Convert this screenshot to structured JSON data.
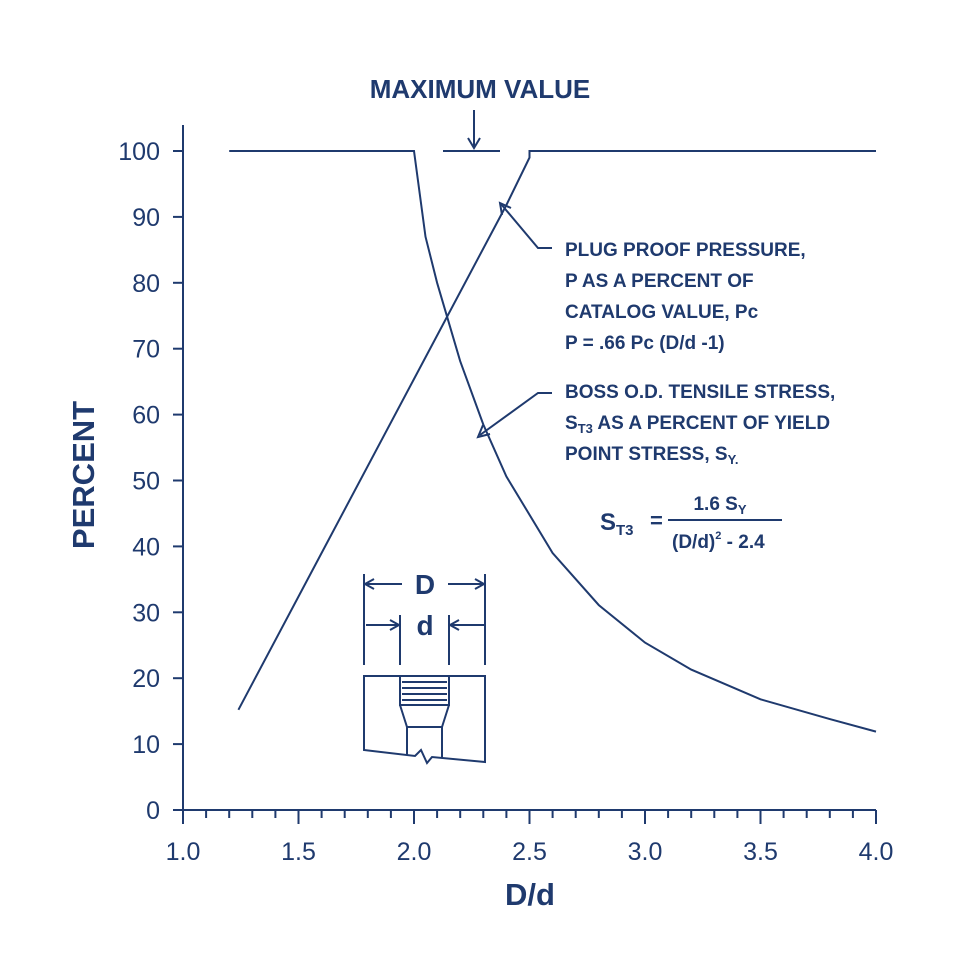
{
  "chart_data": {
    "type": "line",
    "title": "",
    "xlabel": "D/d",
    "ylabel": "PERCENT",
    "xlim": [
      1.0,
      4.0
    ],
    "ylim": [
      0,
      100
    ],
    "x_ticks": [
      "1.0",
      "1.5",
      "2.0",
      "2.5",
      "3.0",
      "3.5",
      "4.0"
    ],
    "y_ticks": [
      "0",
      "10",
      "20",
      "30",
      "40",
      "50",
      "60",
      "70",
      "80",
      "90",
      "100"
    ],
    "grid": false,
    "series": [
      {
        "name": "plug-proof-pressure",
        "points": [
          [
            1.24,
            15.2
          ],
          [
            1.6,
            39.0
          ],
          [
            2.0,
            65.4
          ],
          [
            2.4,
            91.8
          ],
          [
            2.5,
            99.0
          ],
          [
            2.5,
            100
          ],
          [
            4.0,
            100
          ]
        ]
      },
      {
        "name": "boss-od-tensile-stress",
        "points": [
          [
            1.2,
            100
          ],
          [
            2.0,
            100
          ],
          [
            2.05,
            87.0
          ],
          [
            2.1,
            80.0
          ],
          [
            2.2,
            68.1
          ],
          [
            2.3,
            58.5
          ],
          [
            2.4,
            50.6
          ],
          [
            2.6,
            39.0
          ],
          [
            2.8,
            31.1
          ],
          [
            3.0,
            25.4
          ],
          [
            3.2,
            21.3
          ],
          [
            3.5,
            16.8
          ],
          [
            3.8,
            13.8
          ],
          [
            4.0,
            11.9
          ]
        ]
      }
    ],
    "annotations": {
      "maximum_value": "MAXIMUM VALUE",
      "plug_proof": [
        "PLUG PROOF PRESSURE,",
        "P AS A PERCENT OF",
        "CATALOG VALUE, Pc",
        "P = .66  Pc  (D/d -1)"
      ],
      "boss_line1": "BOSS O.D. TENSILE STRESS,",
      "boss_line2_s": "S",
      "boss_line2_sub": "T3",
      "boss_line2_rest": " AS A PERCENT OF YIELD",
      "boss_line3_text": "POINT STRESS, S",
      "boss_line3_sub": "Y.",
      "formula_lhs_s": "S",
      "formula_lhs_sub": "T3",
      "formula_eq": "=",
      "formula_num": "1.6 S",
      "formula_num_sub": "Y",
      "formula_den": "(D/d)",
      "formula_den_sup": "2",
      "formula_den_rest": " - 2.4",
      "dim_D": "D",
      "dim_d": "d"
    }
  }
}
